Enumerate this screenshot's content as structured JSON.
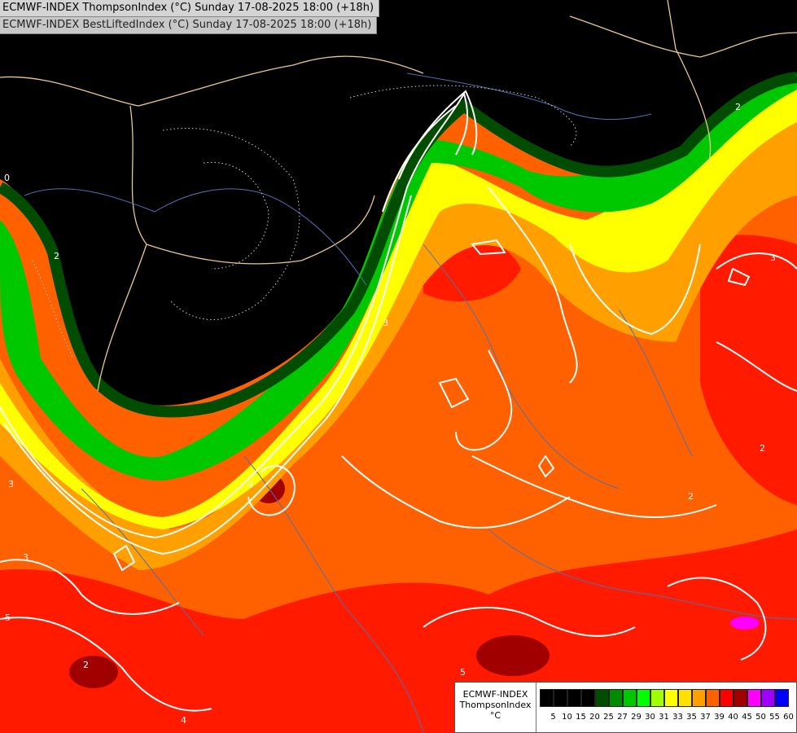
{
  "titles": {
    "line1": "ECMWF-INDEX ThompsonIndex (°C) Sunday 17-08-2025 18:00 (+18h)",
    "line2": "ECMWF-INDEX BestLiftedIndex (°C) Sunday 17-08-2025 18:00 (+18h)"
  },
  "legend": {
    "model": "ECMWF-INDEX",
    "variable": "ThompsonIndex",
    "unit": "°C",
    "levels": [
      "5",
      "10",
      "15",
      "20",
      "25",
      "27",
      "29",
      "30",
      "31",
      "33",
      "35",
      "37",
      "39",
      "40",
      "45",
      "50",
      "55",
      "60"
    ],
    "colors": [
      "#000000",
      "#000000",
      "#000000",
      "#000000",
      "#004c00",
      "#008c00",
      "#00c800",
      "#00ff00",
      "#a0ff00",
      "#ffff00",
      "#ffe000",
      "#ffa000",
      "#ff6000",
      "#ff0000",
      "#a00000",
      "#ff00ff",
      "#a000ff",
      "#0000ff"
    ]
  },
  "contour_labels": [
    "0",
    "2",
    "2",
    "3",
    "3",
    "3",
    "4",
    "4",
    "5",
    "5",
    "2",
    "2",
    "3",
    "2"
  ]
}
